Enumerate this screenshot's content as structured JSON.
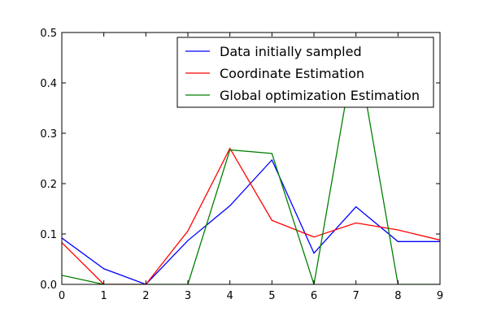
{
  "chart_data": {
    "type": "line",
    "title": "",
    "xlabel": "",
    "ylabel": "",
    "x": [
      0,
      1,
      2,
      3,
      4,
      5,
      6,
      7,
      8,
      9
    ],
    "xlim": [
      0,
      9
    ],
    "ylim": [
      0,
      0.5
    ],
    "x_ticks": [
      "0",
      "1",
      "2",
      "3",
      "4",
      "5",
      "6",
      "7",
      "8",
      "9"
    ],
    "y_ticks": [
      "0.0",
      "0.1",
      "0.2",
      "0.3",
      "0.4",
      "0.5"
    ],
    "grid": false,
    "legend_position": "top-right",
    "series": [
      {
        "name": "Data initially sampled",
        "color": "#0000ff",
        "values": [
          0.092,
          0.031,
          0.0,
          0.087,
          0.156,
          0.247,
          0.062,
          0.154,
          0.085,
          0.085
        ]
      },
      {
        "name": "Coordinate Estimation",
        "color": "#ff0000",
        "values": [
          0.083,
          0.0,
          0.0,
          0.106,
          0.27,
          0.127,
          0.094,
          0.122,
          0.108,
          0.088
        ]
      },
      {
        "name": "Global optimization Estimation",
        "color": "#008000",
        "values": [
          0.018,
          0.0,
          0.0,
          0.0,
          0.267,
          0.26,
          0.0,
          0.48,
          0.0,
          0.0
        ]
      }
    ]
  }
}
